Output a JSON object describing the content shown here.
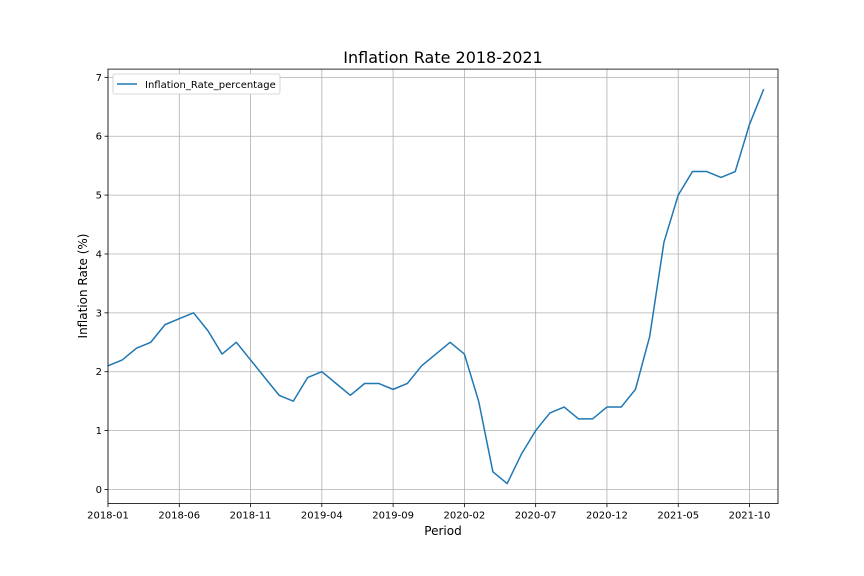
{
  "chart_data": {
    "type": "line",
    "title": "Inflation Rate 2018-2021",
    "xlabel": "Period",
    "ylabel": "Inflation Rate (%)",
    "grid": true,
    "legend_position": "top-left",
    "ylim": [
      -0.24,
      7.14
    ],
    "xlim": [
      "2018-01",
      "2021-12"
    ],
    "x_tick_labels": [
      "2018-01",
      "2018-06",
      "2018-11",
      "2019-04",
      "2019-09",
      "2020-02",
      "2020-07",
      "2020-12",
      "2021-05",
      "2021-10"
    ],
    "y_tick_labels": [
      "0",
      "1",
      "2",
      "3",
      "4",
      "5",
      "6",
      "7"
    ],
    "x": [
      "2018-01",
      "2018-02",
      "2018-03",
      "2018-04",
      "2018-05",
      "2018-06",
      "2018-07",
      "2018-08",
      "2018-09",
      "2018-10",
      "2018-11",
      "2018-12",
      "2019-01",
      "2019-02",
      "2019-03",
      "2019-04",
      "2019-05",
      "2019-06",
      "2019-07",
      "2019-08",
      "2019-09",
      "2019-10",
      "2019-11",
      "2019-12",
      "2020-01",
      "2020-02",
      "2020-03",
      "2020-04",
      "2020-05",
      "2020-06",
      "2020-07",
      "2020-08",
      "2020-09",
      "2020-10",
      "2020-11",
      "2020-12",
      "2021-01",
      "2021-02",
      "2021-03",
      "2021-04",
      "2021-05",
      "2021-06",
      "2021-07",
      "2021-08",
      "2021-09",
      "2021-10",
      "2021-11"
    ],
    "series": [
      {
        "name": "Inflation_Rate_percentage",
        "color": "#1f77b4",
        "values": [
          2.1,
          2.2,
          2.4,
          2.5,
          2.8,
          2.9,
          3.0,
          2.7,
          2.3,
          2.5,
          2.2,
          1.9,
          1.6,
          1.5,
          1.9,
          2.0,
          1.8,
          1.6,
          1.8,
          1.8,
          1.7,
          1.8,
          2.1,
          2.3,
          2.5,
          2.3,
          1.5,
          0.3,
          0.1,
          0.6,
          1.0,
          1.3,
          1.4,
          1.2,
          1.2,
          1.4,
          1.4,
          1.7,
          2.6,
          4.2,
          5.0,
          5.4,
          5.4,
          5.3,
          5.4,
          6.2,
          6.8
        ]
      }
    ]
  }
}
